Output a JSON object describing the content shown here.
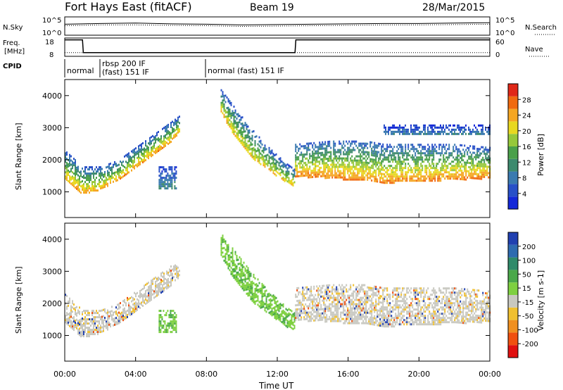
{
  "header": {
    "station": "Fort Hays East (fitACF)",
    "beam": "Beam 19",
    "date": "28/Mar/2015"
  },
  "panels": {
    "nsky_label": "N.Sky",
    "nsearch_label": "N.Search",
    "freq_label_1": "Freq.",
    "freq_label_2": "[MHz]",
    "nave_label": "Nave",
    "cpid_label": "CPID",
    "nsky_left_ticks": [
      "10^5",
      "10^0"
    ],
    "nsky_right_ticks": [
      "10^5",
      "10^0"
    ],
    "freq_left_ticks": [
      "18",
      "8"
    ],
    "freq_right_ticks": [
      "60",
      "0"
    ],
    "cpid_segments": [
      {
        "lines": [
          "normal"
        ],
        "start_hr": 0.0
      },
      {
        "lines": [
          "rbsp 200 IF",
          "(fast) 151 IF"
        ],
        "start_hr": 2.0
      },
      {
        "lines": [
          "normal (fast) 151 IF"
        ],
        "start_hr": 8.5
      }
    ]
  },
  "axes": {
    "ylabel": "Slant Range [km]",
    "xlabel": "Time UT",
    "xticks": [
      "00:00",
      "04:00",
      "08:00",
      "12:00",
      "16:00",
      "20:00",
      "00:00"
    ],
    "yticks": [
      "1000",
      "2000",
      "3000",
      "4000"
    ]
  },
  "colorbars": {
    "power": {
      "label": "Power [dB]",
      "ticks": [
        "4",
        "8",
        "12",
        "16",
        "20",
        "24",
        "28"
      ],
      "colors": [
        "#1428d8",
        "#2850c8",
        "#3a7ab0",
        "#3d8a6e",
        "#4aa04a",
        "#96c83a",
        "#e8d820",
        "#f5a623",
        "#f06a10",
        "#e02818"
      ]
    },
    "velocity": {
      "label": "Velocity [m s-1]",
      "ticks": [
        "200",
        "100",
        "50",
        "15",
        "-15",
        "-50",
        "-100",
        "-200"
      ],
      "colors": [
        "#2040b0",
        "#2e6bb0",
        "#2f8a6a",
        "#4aa84a",
        "#7ed040",
        "#c8c8c0",
        "#f0c030",
        "#f09020",
        "#f05010",
        "#e01010"
      ]
    }
  },
  "chart_data": [
    {
      "type": "line",
      "title": "N.Sky / N.Search",
      "x": [
        0,
        1,
        2,
        4,
        6,
        8,
        10,
        12,
        14,
        16,
        18,
        20,
        22,
        24
      ],
      "series": [
        {
          "name": "N.Sky",
          "values": [
            3.0,
            3.1,
            3.2,
            3.3,
            3.1,
            3.0,
            2.8,
            2.9,
            3.0,
            3.1,
            3.2,
            3.2,
            3.3,
            3.4
          ]
        },
        {
          "name": "N.Search",
          "values": [
            2.6,
            2.7,
            2.8,
            2.8,
            2.7,
            2.6,
            2.4,
            2.5,
            2.6,
            2.7,
            2.8,
            2.8,
            2.9,
            3.0
          ]
        }
      ],
      "ylim": [
        0,
        5
      ]
    },
    {
      "type": "line",
      "title": "Freq. / Nave",
      "x": [
        0,
        1,
        1.05,
        13,
        13.05,
        24
      ],
      "series": [
        {
          "name": "Freq.",
          "values": [
            17,
            17,
            10,
            10,
            17,
            17
          ]
        },
        {
          "name": "Nave",
          "values": [
            20,
            20,
            20,
            20,
            20,
            20
          ]
        }
      ],
      "ylim": [
        8,
        18
      ]
    },
    {
      "type": "heatmap",
      "xlabel": "Time UT",
      "ylabel": "Slant Range [km]",
      "xlim": [
        0,
        24
      ],
      "ylim": [
        200,
        4500
      ],
      "zlabel": "Power [dB]",
      "bands": [
        {
          "x": [
            0,
            1,
            2,
            3,
            4,
            5,
            6,
            6.5
          ],
          "lo": [
            1400,
            950,
            1100,
            1400,
            1800,
            2200,
            2600,
            2900
          ],
          "hi": [
            2300,
            1800,
            1800,
            2000,
            2400,
            2800,
            3200,
            3400
          ],
          "peak": 24
        },
        {
          "x": [
            8.8,
            9.5,
            10.5,
            11.5,
            12.5,
            13
          ],
          "lo": [
            3500,
            2800,
            2100,
            1700,
            1300,
            1200
          ],
          "hi": [
            4200,
            3700,
            3000,
            2400,
            1900,
            1700
          ],
          "peak": 22
        },
        {
          "x": [
            13,
            15,
            17,
            18,
            20,
            22,
            24
          ],
          "lo": [
            1500,
            1450,
            1350,
            1300,
            1350,
            1400,
            1450
          ],
          "hi": [
            2500,
            2600,
            2600,
            2500,
            2500,
            2500,
            2400
          ],
          "peak": 26
        },
        {
          "x": [
            5.3,
            6.3
          ],
          "lo": [
            1100,
            1100
          ],
          "hi": [
            1800,
            1800
          ],
          "peak": 10
        },
        {
          "x": [
            18,
            24
          ],
          "lo": [
            2800,
            2800
          ],
          "hi": [
            3100,
            3100
          ],
          "peak": 8
        }
      ]
    },
    {
      "type": "heatmap",
      "xlabel": "Time UT",
      "ylabel": "Slant Range [km]",
      "xlim": [
        0,
        24
      ],
      "ylim": [
        200,
        4500
      ],
      "zlabel": "Velocity [m s-1]",
      "bands": [
        {
          "x": [
            0,
            1,
            2,
            3,
            4,
            5,
            6,
            6.5
          ],
          "lo": [
            1400,
            950,
            1100,
            1400,
            1800,
            2200,
            2600,
            2900
          ],
          "hi": [
            2300,
            1800,
            1800,
            2000,
            2400,
            2800,
            3200,
            3400
          ],
          "vel": 0
        },
        {
          "x": [
            8.8,
            9.5,
            10.5,
            11.5,
            12.5,
            13
          ],
          "lo": [
            3500,
            2800,
            2100,
            1700,
            1300,
            1200
          ],
          "hi": [
            4200,
            3700,
            3000,
            2400,
            1900,
            1700
          ],
          "vel": 40
        },
        {
          "x": [
            13,
            15,
            17,
            18,
            20,
            22,
            24
          ],
          "lo": [
            1500,
            1450,
            1350,
            1300,
            1350,
            1400,
            1450
          ],
          "hi": [
            2500,
            2600,
            2600,
            2500,
            2500,
            2500,
            2400
          ],
          "vel": 0
        },
        {
          "x": [
            5.3,
            6.3
          ],
          "lo": [
            1100,
            1100
          ],
          "hi": [
            1800,
            1800
          ],
          "vel": 60
        }
      ]
    }
  ]
}
